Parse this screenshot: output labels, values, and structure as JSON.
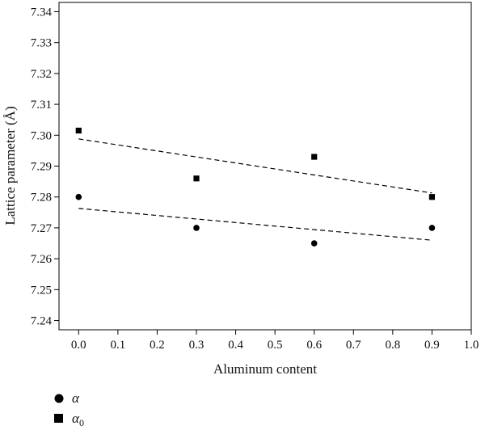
{
  "chart_data": {
    "type": "scatter",
    "xlabel": "Aluminum content",
    "ylabel": "Lattice parameter (Å)",
    "xlim": [
      -0.05,
      1.0
    ],
    "ylim": [
      7.237,
      7.343
    ],
    "x_ticks": [
      "0.0",
      "0.1",
      "0.2",
      "0.3",
      "0.4",
      "0.5",
      "0.6",
      "0.7",
      "0.8",
      "0.9",
      "1.0"
    ],
    "y_ticks": [
      "7.24",
      "7.25",
      "7.26",
      "7.27",
      "7.28",
      "7.29",
      "7.30",
      "7.31",
      "7.32",
      "7.33",
      "7.34"
    ],
    "grid": false,
    "legend_position": "bottom-left",
    "series": [
      {
        "name": "α",
        "marker": "circle",
        "color": "#000000",
        "x": [
          0.0,
          0.3,
          0.6,
          0.9
        ],
        "y": [
          7.28,
          7.27,
          7.265,
          7.27
        ],
        "trendline": {
          "style": "dashed",
          "x": [
            0.0,
            0.9
          ],
          "y": [
            7.2763,
            7.266
          ]
        }
      },
      {
        "name": "α",
        "name_subscript": "0",
        "marker": "square",
        "color": "#000000",
        "x": [
          0.0,
          0.3,
          0.6,
          0.9
        ],
        "y": [
          7.3015,
          7.286,
          7.293,
          7.28
        ],
        "trendline": {
          "style": "dashed",
          "x": [
            0.0,
            0.9
          ],
          "y": [
            7.2988,
            7.2813
          ]
        }
      }
    ]
  }
}
